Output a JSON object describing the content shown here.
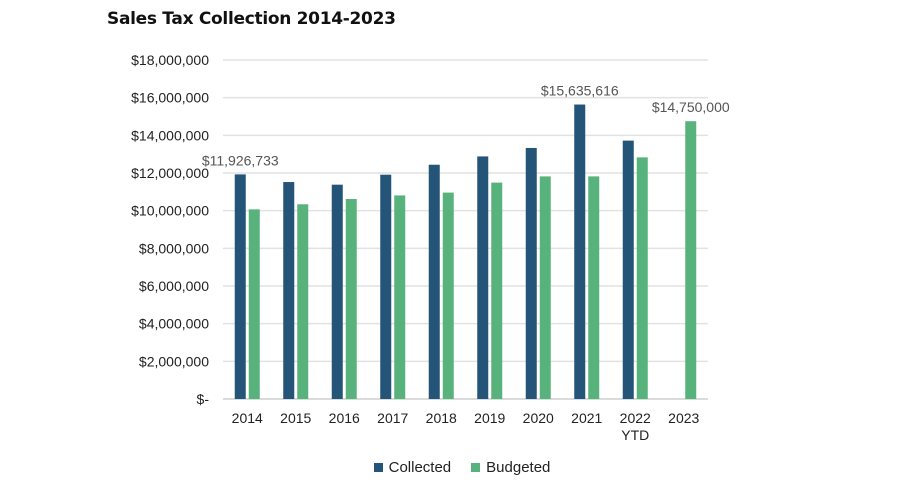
{
  "chart_data": {
    "type": "bar",
    "title": "Sales Tax Collection 2014-2023",
    "xlabel": "",
    "ylabel": "",
    "categories": [
      "2014",
      "2015",
      "2016",
      "2017",
      "2018",
      "2019",
      "2020",
      "2021",
      "2022\nYTD",
      "2023"
    ],
    "ylim": [
      0,
      18000000
    ],
    "yticks": [
      0,
      2000000,
      4000000,
      6000000,
      8000000,
      10000000,
      12000000,
      14000000,
      16000000,
      18000000
    ],
    "ytick_labels": [
      "$-",
      "$2,000,000",
      "$4,000,000",
      "$6,000,000",
      "$8,000,000",
      "$10,000,000",
      "$12,000,000",
      "$14,000,000",
      "$16,000,000",
      "$18,000,000"
    ],
    "grid": true,
    "legend_position": "bottom",
    "series": [
      {
        "name": "Collected",
        "color": "#245478",
        "values": [
          11926733,
          11520000,
          11380000,
          11910000,
          12440000,
          12880000,
          13330000,
          15635616,
          13720000,
          null
        ],
        "data_labels": [
          "$11,926,733",
          null,
          null,
          null,
          null,
          null,
          null,
          "$15,635,616",
          null,
          null
        ]
      },
      {
        "name": "Budgeted",
        "color": "#58b27b",
        "values": [
          10070000,
          10340000,
          10620000,
          10810000,
          10960000,
          11490000,
          11820000,
          11820000,
          12830000,
          14750000
        ],
        "data_labels": [
          null,
          null,
          null,
          null,
          null,
          null,
          null,
          null,
          null,
          "$14,750,000"
        ]
      }
    ]
  }
}
